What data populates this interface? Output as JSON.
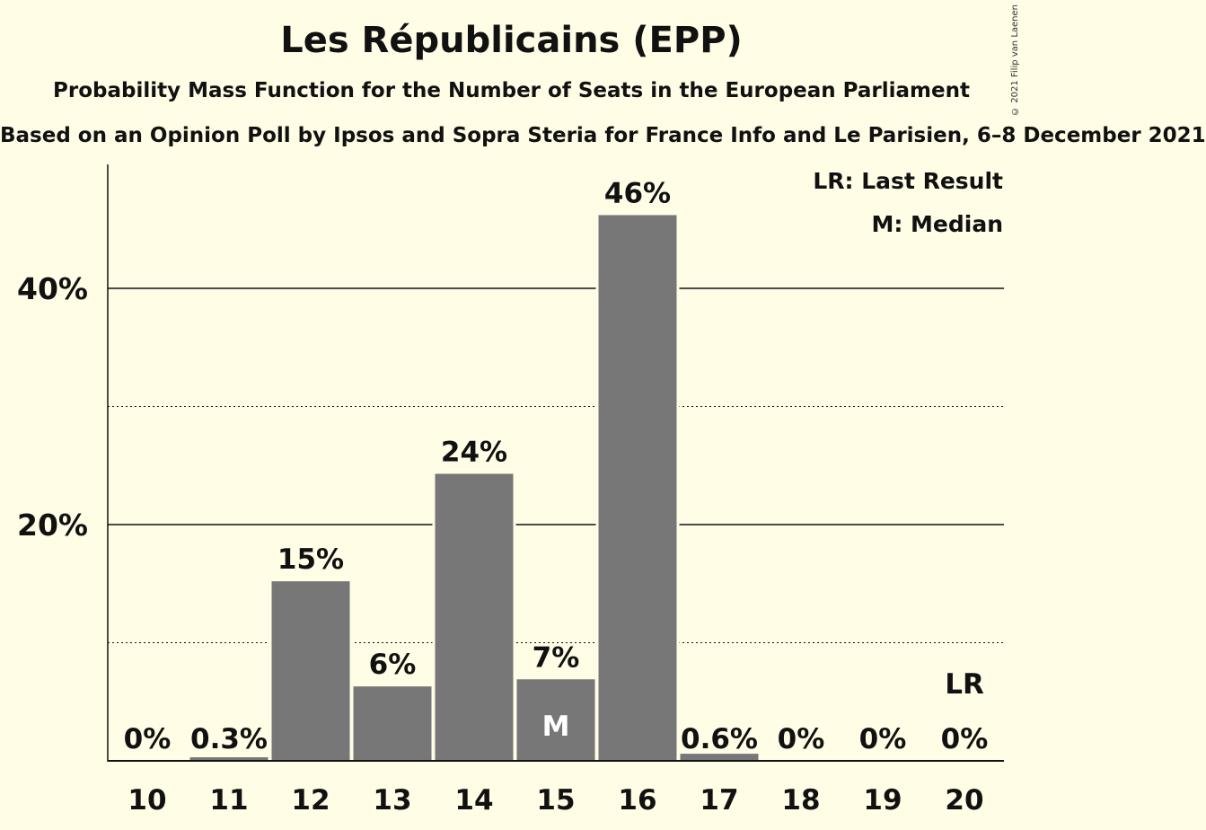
{
  "chart_data": {
    "type": "bar",
    "title": "Les Républicains (EPP)",
    "subtitle": "Probability Mass Function for the Number of Seats in the European Parliament",
    "source": "Based on an Opinion Poll by Ipsos and Sopra Steria for France Info and Le Parisien, 6–8 December 2021",
    "copyright": "© 2021 Filip van Laenen",
    "categories": [
      "10",
      "11",
      "12",
      "13",
      "14",
      "15",
      "16",
      "17",
      "18",
      "19",
      "20"
    ],
    "values": [
      0,
      0.3,
      15.2,
      6.3,
      24.3,
      6.9,
      46.2,
      0.6,
      0,
      0,
      0
    ],
    "data_labels": [
      "0%",
      "0.3%",
      "15%",
      "6%",
      "24%",
      "7%",
      "46%",
      "0.6%",
      "0%",
      "0%",
      "0%"
    ],
    "ylim": [
      0,
      50
    ],
    "yticks": [
      {
        "value": 20,
        "label": "20%"
      },
      {
        "value": 40,
        "label": "40%"
      }
    ],
    "minor_gridlines": [
      10,
      30
    ],
    "median_index": 5,
    "median_marker": "M",
    "last_result_index": 10,
    "last_result_marker": "LR",
    "legend": [
      "LR: Last Result",
      "M: Median"
    ],
    "legend_position": "top-right",
    "bar_color": "#777777",
    "background_color": "#FFFDE5"
  }
}
